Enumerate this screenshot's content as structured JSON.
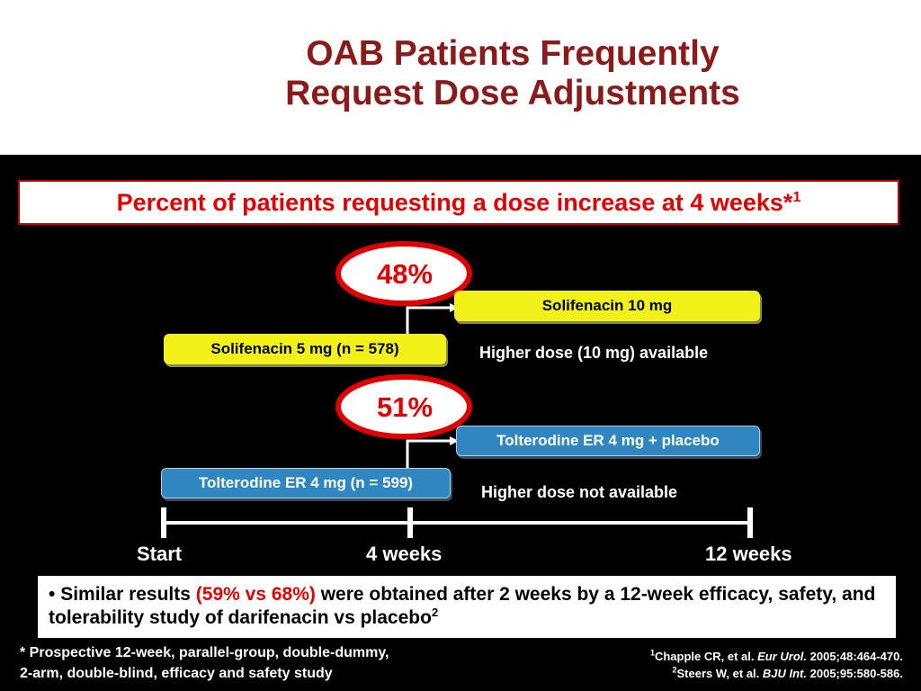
{
  "title": {
    "line1": "OAB Patients Frequently",
    "line2": "Request Dose Adjustments"
  },
  "subtitle": {
    "text": "Percent of patients requesting a dose increase at 4 weeks*",
    "superscript": "1"
  },
  "solifenacin": {
    "percent": "48%",
    "start_box": "Solifenacin 5 mg (n = 578)",
    "end_box": "Solifenacin 10 mg",
    "note": "Higher dose (10 mg) available"
  },
  "tolterodine": {
    "percent": "51%",
    "start_box": "Tolterodine ER 4 mg (n = 599)",
    "end_box": "Tolterodine ER 4 mg + placebo",
    "note": "Higher dose not available"
  },
  "timeline": {
    "start": "Start",
    "mid": "4 weeks",
    "end": "12 weeks"
  },
  "bullet": {
    "marker": "•",
    "pre": "Similar results ",
    "highlight": "(59% vs 68%)",
    "post": " were obtained after 2 weeks by a 12-week efficacy, safety, and tolerability study of darifenacin vs placebo",
    "superscript": "2"
  },
  "footnote": {
    "line1": "* Prospective 12-week, parallel-group, double-dummy,",
    "line2": "2-arm, double-blind, efficacy and safety study"
  },
  "references": [
    {
      "num": "1",
      "authors": "Chapple CR, et al. ",
      "journal": "Eur Urol.",
      "details": " 2005;48:464-470."
    },
    {
      "num": "2",
      "authors": "Steers W, et al. ",
      "journal": "BJU Int.",
      "details": " 2005;95:580-586."
    }
  ],
  "colors": {
    "title": "#8b1a1a",
    "accent_red": "#e10000",
    "yellow_box": "#f2f21a",
    "blue_box": "#2f86c0",
    "background": "#000000"
  }
}
